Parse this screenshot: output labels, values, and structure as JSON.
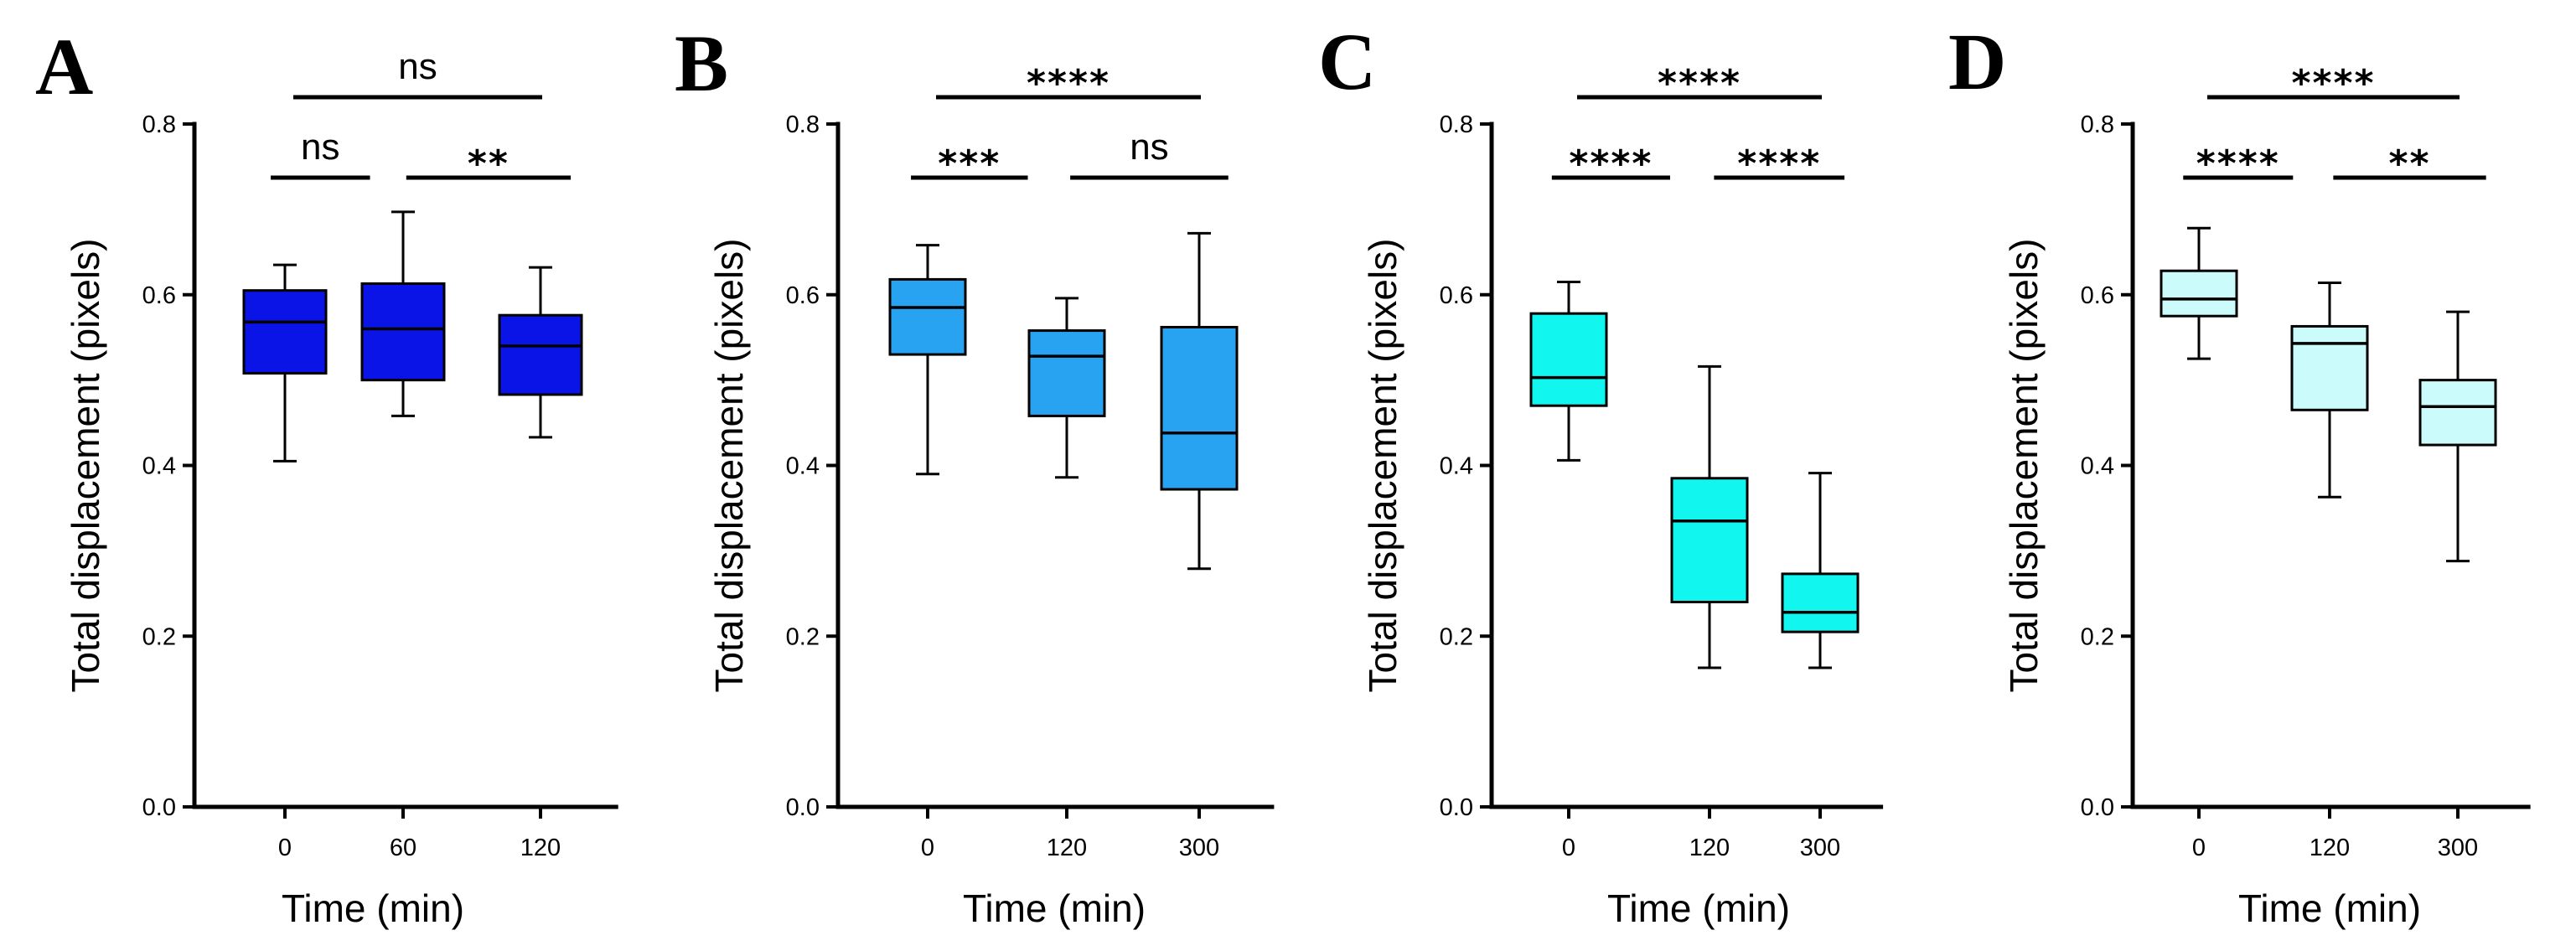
{
  "chart_data": [
    {
      "type": "box",
      "panel": "A",
      "box_color": "#0b14e6",
      "categories": [
        "0",
        "60",
        "120"
      ],
      "boxes": [
        {
          "min": 0.405,
          "q1": 0.508,
          "median": 0.568,
          "q3": 0.605,
          "max": 0.635
        },
        {
          "min": 0.458,
          "q1": 0.5,
          "median": 0.56,
          "q3": 0.613,
          "max": 0.697
        },
        {
          "min": 0.433,
          "q1": 0.483,
          "median": 0.54,
          "q3": 0.576,
          "max": 0.632
        }
      ],
      "ylabel": "Total displacement (pixels)",
      "xlabel": "Time  (min)",
      "ylim": [
        0,
        0.8
      ],
      "yticks": [
        "0.0",
        "0.2",
        "0.4",
        "0.6",
        "0.8"
      ],
      "comparisons": [
        {
          "from": 0,
          "to": 2,
          "label": "ns",
          "level": 2
        },
        {
          "from": 0,
          "to": 1,
          "label": "ns",
          "level": 1
        },
        {
          "from": 1,
          "to": 2,
          "label": "**",
          "level": 1
        }
      ]
    },
    {
      "type": "box",
      "panel": "B",
      "box_color": "#27a3f2",
      "categories": [
        "0",
        "120",
        "300"
      ],
      "boxes": [
        {
          "min": 0.39,
          "q1": 0.53,
          "median": 0.585,
          "q3": 0.618,
          "max": 0.658
        },
        {
          "min": 0.386,
          "q1": 0.458,
          "median": 0.528,
          "q3": 0.558,
          "max": 0.596
        },
        {
          "min": 0.279,
          "q1": 0.372,
          "median": 0.438,
          "q3": 0.562,
          "max": 0.672
        }
      ],
      "ylabel": "Total displacement (pixels)",
      "xlabel": "Time  (min)",
      "ylim": [
        0,
        0.8
      ],
      "yticks": [
        "0.0",
        "0.2",
        "0.4",
        "0.6",
        "0.8"
      ],
      "comparisons": [
        {
          "from": 0,
          "to": 2,
          "label": "****",
          "level": 2
        },
        {
          "from": 0,
          "to": 1,
          "label": "***",
          "level": 1
        },
        {
          "from": 1,
          "to": 2,
          "label": "ns",
          "level": 1
        }
      ]
    },
    {
      "type": "box",
      "panel": "C",
      "box_color": "#11f7f0",
      "categories": [
        "0",
        "120",
        "300"
      ],
      "boxes": [
        {
          "min": 0.406,
          "q1": 0.47,
          "median": 0.503,
          "q3": 0.578,
          "max": 0.615
        },
        {
          "min": 0.163,
          "q1": 0.24,
          "median": 0.335,
          "q3": 0.385,
          "max": 0.516
        },
        {
          "min": 0.163,
          "q1": 0.205,
          "median": 0.228,
          "q3": 0.273,
          "max": 0.391
        }
      ],
      "ylabel": "Total displacement (pixels)",
      "xlabel": "Time  (min)",
      "ylim": [
        0,
        0.8
      ],
      "yticks": [
        "0.0",
        "0.2",
        "0.4",
        "0.6",
        "0.8"
      ],
      "comparisons": [
        {
          "from": 0,
          "to": 2,
          "label": "****",
          "level": 2
        },
        {
          "from": 0,
          "to": 1,
          "label": "****",
          "level": 1
        },
        {
          "from": 1,
          "to": 2,
          "label": "****",
          "level": 1
        }
      ]
    },
    {
      "type": "box",
      "panel": "D",
      "box_color": "#cbfbfb",
      "categories": [
        "0",
        "120",
        "300"
      ],
      "boxes": [
        {
          "min": 0.525,
          "q1": 0.575,
          "median": 0.595,
          "q3": 0.628,
          "max": 0.678
        },
        {
          "min": 0.363,
          "q1": 0.465,
          "median": 0.543,
          "q3": 0.563,
          "max": 0.614
        },
        {
          "min": 0.288,
          "q1": 0.424,
          "median": 0.469,
          "q3": 0.5,
          "max": 0.58
        }
      ],
      "ylabel": "Total displacement (pixels)",
      "xlabel": "Time (min)",
      "ylim": [
        0,
        0.8
      ],
      "yticks": [
        "0.0",
        "0.2",
        "0.4",
        "0.6",
        "0.8"
      ],
      "comparisons": [
        {
          "from": 0,
          "to": 2,
          "label": "****",
          "level": 2
        },
        {
          "from": 0,
          "to": 1,
          "label": "****",
          "level": 1
        },
        {
          "from": 1,
          "to": 2,
          "label": "**",
          "level": 1
        }
      ]
    }
  ]
}
